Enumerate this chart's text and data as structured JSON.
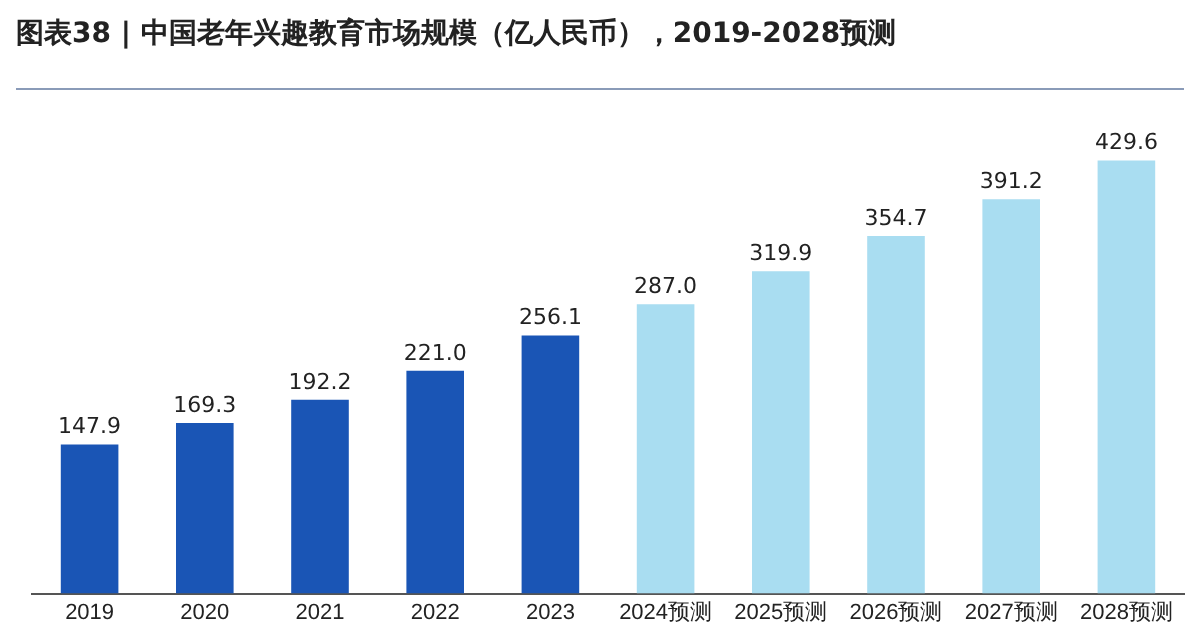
{
  "chart_data": {
    "type": "bar",
    "title": "图表38 | 中国老年兴趣教育市场规模（亿人民币），2019-2028预测",
    "categories": [
      "2019",
      "2020",
      "2021",
      "2022",
      "2023",
      "2024预测",
      "2025预测",
      "2026预测",
      "2027预测",
      "2028预测"
    ],
    "values": [
      147.9,
      169.3,
      192.2,
      221.0,
      256.1,
      287.0,
      319.9,
      354.7,
      391.2,
      429.6
    ],
    "colors": [
      "#1a55b5",
      "#1a55b5",
      "#1a55b5",
      "#1a55b5",
      "#1a55b5",
      "#a9ddf1",
      "#a9ddf1",
      "#a9ddf1",
      "#a9ddf1",
      "#a9ddf1"
    ],
    "value_labels": [
      "147.9",
      "169.3",
      "192.2",
      "221.0",
      "256.1",
      "287.0",
      "319.9",
      "354.7",
      "391.2",
      "429.6"
    ],
    "relative": false,
    "grid": false,
    "legend": false
  }
}
